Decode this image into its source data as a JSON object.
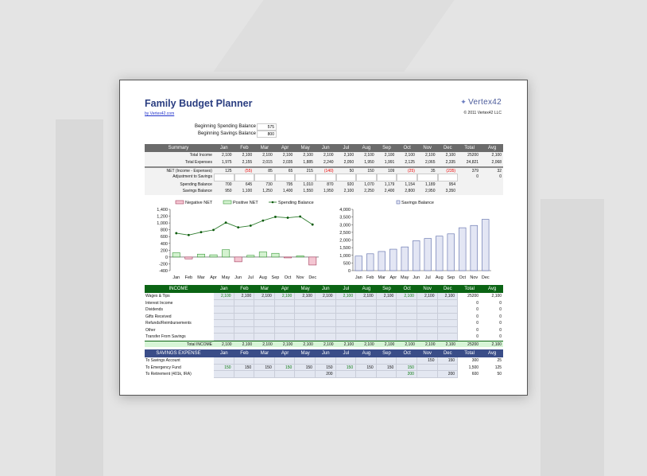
{
  "header": {
    "title": "Family Budget Planner",
    "link": "by Vertex42.com",
    "logo": "Vertex42",
    "copyright": "© 2011 Vertex42 LLC"
  },
  "beginning": [
    {
      "label": "Beginning Spending Balance",
      "value": "575"
    },
    {
      "label": "Beginning Savings Balance",
      "value": "800"
    }
  ],
  "months": [
    "Jan",
    "Feb",
    "Mar",
    "Apr",
    "May",
    "Jun",
    "Jul",
    "Aug",
    "Sep",
    "Oct",
    "Nov",
    "Dec"
  ],
  "total_label": "Total",
  "avg_label": "Avg",
  "summary": {
    "title": "Summary",
    "rows": [
      {
        "label": "Total Income",
        "values": [
          "2,100",
          "2,100",
          "2,100",
          "2,100",
          "2,100",
          "2,100",
          "2,100",
          "2,100",
          "2,100",
          "2,100",
          "2,100",
          "2,100"
        ],
        "total": "25200",
        "avg": "2,100"
      },
      {
        "label": "Total Expenses",
        "values": [
          "1,975",
          "2,155",
          "2,015",
          "2,035",
          "1,885",
          "2,240",
          "2,050",
          "1,950",
          "1,991",
          "2,125",
          "2,065",
          "2,335"
        ],
        "total": "24,821",
        "avg": "2,068"
      },
      {
        "label": "NET (Income - Expenses)",
        "values": [
          "125",
          "(55)",
          "85",
          "65",
          "215",
          "(140)",
          "50",
          "150",
          "109",
          "(25)",
          "35",
          "(235)"
        ],
        "total": "379",
        "avg": "32"
      },
      {
        "label": "Adjustment to Savings",
        "values": [
          "",
          "",
          "",
          "",
          "",
          "",
          "",
          "",
          "",
          "",
          "",
          ""
        ],
        "total": "0",
        "avg": "0"
      },
      {
        "label": "Spending Balance",
        "values": [
          "700",
          "645",
          "730",
          "795",
          "1,010",
          "870",
          "920",
          "1,070",
          "1,179",
          "1,154",
          "1,189",
          "954"
        ],
        "total": "",
        "avg": ""
      },
      {
        "label": "Savings Balance",
        "values": [
          "950",
          "1,100",
          "1,250",
          "1,400",
          "1,550",
          "1,950",
          "2,100",
          "2,250",
          "2,400",
          "2,800",
          "2,950",
          "3,350"
        ],
        "total": "",
        "avg": ""
      }
    ]
  },
  "chart_data": [
    {
      "type": "bar",
      "title": "",
      "legend": [
        "Negative NET",
        "Positive NET",
        "Spending Balance"
      ],
      "legend_position": "top",
      "categories": [
        "Jan",
        "Feb",
        "Mar",
        "Apr",
        "May",
        "Jun",
        "Jul",
        "Aug",
        "Sep",
        "Oct",
        "Nov",
        "Dec"
      ],
      "series": [
        {
          "name": "NET",
          "values": [
            125,
            -55,
            85,
            65,
            215,
            -140,
            50,
            150,
            109,
            -25,
            35,
            -235
          ]
        },
        {
          "name": "Spending Balance",
          "type": "line",
          "values": [
            700,
            645,
            730,
            795,
            1010,
            870,
            920,
            1070,
            1179,
            1154,
            1189,
            954
          ]
        }
      ],
      "ylim": [
        -400,
        1400
      ],
      "yticks": [
        "1,400",
        "1,200",
        "1,000",
        "800",
        "600",
        "400",
        "200",
        "0",
        "-200",
        "-400"
      ],
      "colors": {
        "neg": "#f4c6d2",
        "pos": "#d4f2d0",
        "line": "#2f7d2f"
      }
    },
    {
      "type": "bar",
      "title": "",
      "legend": [
        "Savings Balance"
      ],
      "legend_position": "top",
      "categories": [
        "Jan",
        "Feb",
        "Mar",
        "Apr",
        "May",
        "Jun",
        "Jul",
        "Aug",
        "Sep",
        "Oct",
        "Nov",
        "Dec"
      ],
      "series": [
        {
          "name": "Savings Balance",
          "values": [
            950,
            1100,
            1250,
            1400,
            1550,
            1950,
            2100,
            2250,
            2400,
            2800,
            2950,
            3350
          ]
        }
      ],
      "ylim": [
        0,
        4000
      ],
      "yticks": [
        "4,000",
        "3,500",
        "3,000",
        "2,500",
        "2,000",
        "1,500",
        "1,000",
        "500",
        "0"
      ],
      "colors": {
        "bar": "#e3e6f4",
        "edge": "#5a6aa8"
      }
    }
  ],
  "income": {
    "title": "INCOME",
    "rows": [
      {
        "label": "Wages & Tips",
        "values": [
          "2,100",
          "2,100",
          "2,100",
          "2,100",
          "2,100",
          "2,100",
          "2,100",
          "2,100",
          "2,100",
          "2,100",
          "2,100",
          "2,100"
        ],
        "total": "25200",
        "avg": "2,100"
      },
      {
        "label": "Interest Income",
        "values": [
          "",
          "",
          "",
          "",
          "",
          "",
          "",
          "",
          "",
          "",
          "",
          ""
        ],
        "total": "0",
        "avg": "0"
      },
      {
        "label": "Dividends",
        "values": [
          "",
          "",
          "",
          "",
          "",
          "",
          "",
          "",
          "",
          "",
          "",
          ""
        ],
        "total": "0",
        "avg": "0"
      },
      {
        "label": "Gifts Received",
        "values": [
          "",
          "",
          "",
          "",
          "",
          "",
          "",
          "",
          "",
          "",
          "",
          ""
        ],
        "total": "0",
        "avg": "0"
      },
      {
        "label": "Refunds/Reimbursements",
        "values": [
          "",
          "",
          "",
          "",
          "",
          "",
          "",
          "",
          "",
          "",
          "",
          ""
        ],
        "total": "0",
        "avg": "0"
      },
      {
        "label": "Other",
        "values": [
          "",
          "",
          "",
          "",
          "",
          "",
          "",
          "",
          "",
          "",
          "",
          ""
        ],
        "total": "0",
        "avg": "0"
      },
      {
        "label": "Transfer From Savings",
        "values": [
          "",
          "",
          "",
          "",
          "",
          "",
          "",
          "",
          "",
          "",
          "",
          ""
        ],
        "total": "0",
        "avg": "0"
      }
    ],
    "total": {
      "label": "Total INCOME",
      "values": [
        "2,100",
        "2,100",
        "2,100",
        "2,100",
        "2,100",
        "2,100",
        "2,100",
        "2,100",
        "2,100",
        "2,100",
        "2,100",
        "2,100"
      ],
      "total": "25200",
      "avg": "2,100"
    }
  },
  "savings": {
    "title": "SAVINGS EXPENSE",
    "rows": [
      {
        "label": "To Savings Account",
        "values": [
          "",
          "",
          "",
          "",
          "",
          "",
          "",
          "",
          "",
          "",
          "150",
          "150"
        ],
        "total": "300",
        "avg": "25"
      },
      {
        "label": "To Emergency Fund",
        "values": [
          "150",
          "150",
          "150",
          "150",
          "150",
          "150",
          "150",
          "150",
          "150",
          "150",
          "",
          ""
        ],
        "total": "1,500",
        "avg": "125"
      },
      {
        "label": "To Retirement (401k, IRA)",
        "values": [
          "",
          "",
          "",
          "",
          "",
          "200",
          "",
          "",
          "",
          "200",
          "",
          "200"
        ],
        "total": "600",
        "avg": "50"
      }
    ]
  },
  "colors": {
    "summary_header": "#6b6b6b",
    "income_header": "#0b6414",
    "income_total": "#d6f5d6",
    "savings_header": "#3a4d88",
    "title": "#2a3d80"
  }
}
